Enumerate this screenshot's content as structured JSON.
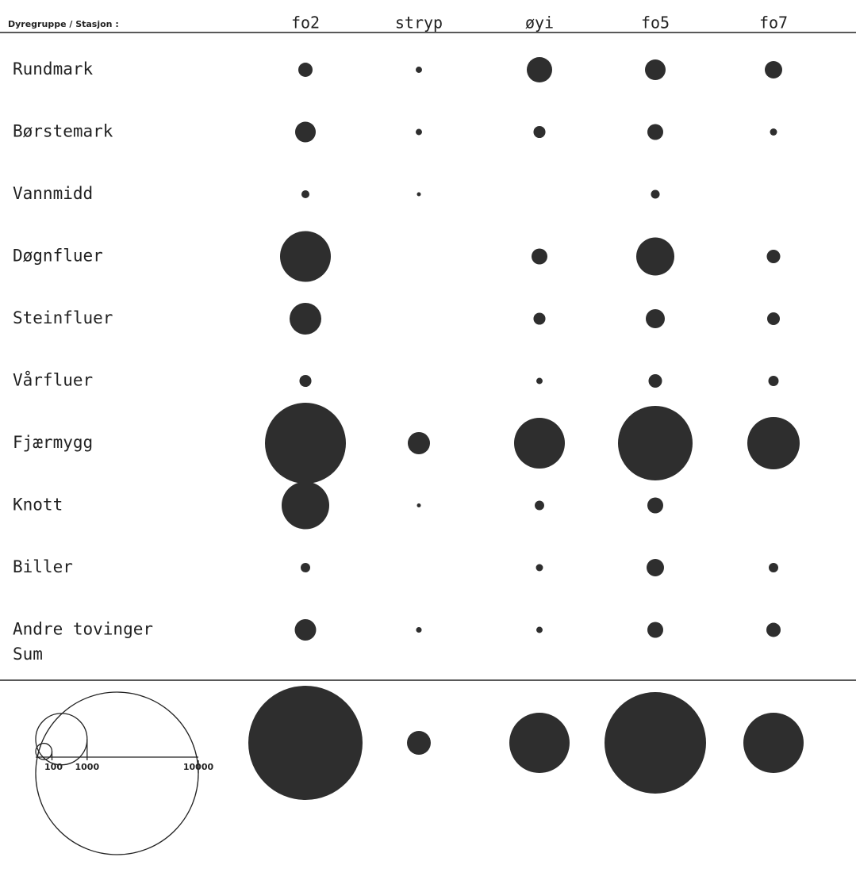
{
  "chart_data": {
    "type": "bubble",
    "row_header": "Dyregruppe / Stasjon :",
    "categories": [
      "Rundmark",
      "Børstemark",
      "Vannmidd",
      "Døgnfluer",
      "Steinfluer",
      "Vårfluer",
      "Fjærmygg",
      "Knott",
      "Biller",
      "Andre tovinger",
      "Sum"
    ],
    "series": [
      {
        "name": "fo2",
        "color": "#2e2e2e",
        "values": [
          77,
          161,
          24,
          975,
          381,
          54,
          2476,
          857,
          34,
          173,
          4934
        ]
      },
      {
        "name": "stryp",
        "color": "#2e2e2e",
        "values": [
          15,
          15,
          6,
          null,
          null,
          null,
          187,
          6,
          null,
          12,
          214
        ]
      },
      {
        "name": "øyi",
        "color": "#2e2e2e",
        "values": [
          244,
          54,
          null,
          95,
          54,
          15,
          975,
          34,
          19,
          15,
          1374
        ]
      },
      {
        "name": "fo5",
        "color": "#2e2e2e",
        "values": [
          161,
          95,
          29,
          548,
          137,
          69,
          2103,
          95,
          115,
          95,
          3898
        ]
      },
      {
        "name": "fo7",
        "color": "#2e2e2e",
        "values": [
          115,
          19,
          null,
          69,
          61,
          40,
          1037,
          null,
          34,
          77,
          1374
        ]
      }
    ],
    "size_legend": [
      100,
      1000,
      10000
    ]
  }
}
